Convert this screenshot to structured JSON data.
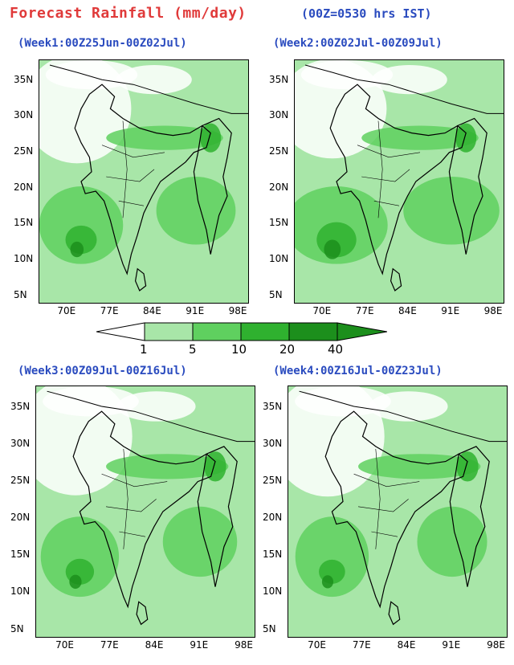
{
  "header": {
    "title": "Forecast Rainfall (mm/day)",
    "note": "(00Z=0530 hrs IST)"
  },
  "colors": {
    "class_0": "#ffffff",
    "class_1": "#a8e6a8",
    "class_2": "#5fd05f",
    "class_3": "#2fb12f",
    "class_4": "#1c8f1c",
    "boundary": "#000000",
    "title": "#e03a3a",
    "panel_title": "#2a4bbf"
  },
  "axes": {
    "lon_ticks": [
      "70E",
      "77E",
      "84E",
      "91E",
      "98E"
    ],
    "lat_ticks": [
      "35N",
      "30N",
      "25N",
      "20N",
      "15N",
      "10N",
      "5N"
    ]
  },
  "legend": {
    "levels": [
      "1",
      "5",
      "10",
      "20",
      "40"
    ],
    "units": "mm/day"
  },
  "panels": [
    {
      "label": "(Week1:00Z25Jun-00Z02Jul)",
      "intensity": 0.55
    },
    {
      "label": "(Week2:00Z02Jul-00Z09Jul)",
      "intensity": 0.75
    },
    {
      "label": "(Week3:00Z09Jul-00Z16Jul)",
      "intensity": 0.45
    },
    {
      "label": "(Week4:00Z16Jul-00Z23Jul)",
      "intensity": 0.4
    }
  ]
}
